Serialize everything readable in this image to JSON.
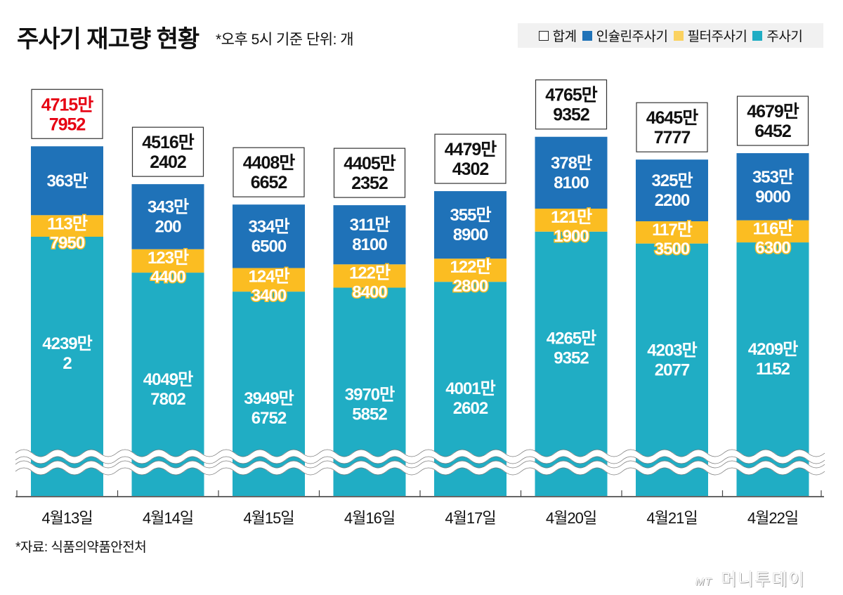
{
  "header": {
    "title": "주사기 재고량 현황",
    "subtitle": "*오후 5시 기준 단위: 개"
  },
  "legend": [
    {
      "label": "합계",
      "color": "#ffffff",
      "style": "outline"
    },
    {
      "label": "인슐린주사기",
      "color": "#1f72b8"
    },
    {
      "label": "필터주사기",
      "color": "#fbd260"
    },
    {
      "label": "주사기",
      "color": "#20adc4"
    }
  ],
  "colors": {
    "insulin": "#1f72b8",
    "filter": "#fbbd22",
    "syringe": "#20adc4",
    "total_highlight": "#e60012",
    "total_normal": "#111111"
  },
  "footer": {
    "source": "*자료: 식품의약품안전처",
    "logo_mt": "MT",
    "logo_text": "머니투데이"
  },
  "chart_data": {
    "type": "bar",
    "stacked": true,
    "title": "주사기 재고량 현황",
    "subtitle": "*오후 5시 기준 단위: 개",
    "xlabel": "",
    "ylabel": "",
    "axis_break": true,
    "grid": false,
    "legend_position": "top-right",
    "categories": [
      "4월13일",
      "4월14일",
      "4월15일",
      "4월16일",
      "4월17일",
      "4월20일",
      "4월21일",
      "4월22일"
    ],
    "series": [
      {
        "name": "주사기",
        "key": "syringe",
        "values": [
          42390002,
          40497802,
          39496752,
          39705852,
          40012602,
          42659352,
          42032077,
          42091152
        ],
        "labels": [
          [
            "4239만",
            "2"
          ],
          [
            "4049만",
            "7802"
          ],
          [
            "3949만",
            "6752"
          ],
          [
            "3970만",
            "5852"
          ],
          [
            "4001만",
            "2602"
          ],
          [
            "4265만",
            "9352"
          ],
          [
            "4203만",
            "2077"
          ],
          [
            "4209만",
            "1152"
          ]
        ]
      },
      {
        "name": "필터주사기",
        "key": "filter",
        "values": [
          1137950,
          1234400,
          1243400,
          1228400,
          1222800,
          1211900,
          1173500,
          1166300
        ],
        "labels": [
          [
            "113만",
            "7950"
          ],
          [
            "123만",
            "4400"
          ],
          [
            "124만",
            "3400"
          ],
          [
            "122만",
            "8400"
          ],
          [
            "122만",
            "2800"
          ],
          [
            "121만",
            "1900"
          ],
          [
            "117만",
            "3500"
          ],
          [
            "116만",
            "6300"
          ]
        ]
      },
      {
        "name": "인슐린주사기",
        "key": "insulin",
        "values": [
          3630000,
          3430200,
          3346500,
          3118100,
          3558900,
          3788100,
          3252200,
          3539000
        ],
        "labels": [
          [
            "363만",
            ""
          ],
          [
            "343만",
            "200"
          ],
          [
            "334만",
            "6500"
          ],
          [
            "311만",
            "8100"
          ],
          [
            "355만",
            "8900"
          ],
          [
            "378만",
            "8100"
          ],
          [
            "325만",
            "2200"
          ],
          [
            "353만",
            "9000"
          ]
        ]
      }
    ],
    "totals": {
      "name": "합계",
      "values": [
        47157952,
        45162402,
        44086652,
        44052352,
        44794302,
        47659352,
        46457777,
        46796452
      ],
      "labels": [
        [
          "4715만",
          "7952"
        ],
        [
          "4516만",
          "2402"
        ],
        [
          "4408만",
          "6652"
        ],
        [
          "4405만",
          "2352"
        ],
        [
          "4479만",
          "4302"
        ],
        [
          "4765만",
          "9352"
        ],
        [
          "4645만",
          "7777"
        ],
        [
          "4679만",
          "6452"
        ]
      ],
      "highlight_index": 0
    },
    "unit": "개",
    "number_suffix": "만"
  }
}
